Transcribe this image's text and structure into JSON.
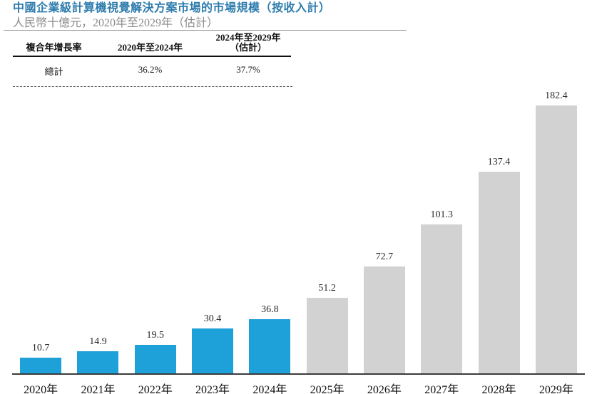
{
  "header": {
    "title": "中國企業級計算機視覺解決方案市場的市場規模（按收入計）",
    "subtitle": "人民幣十億元，2020年至2029年（估計）"
  },
  "cagr_table": {
    "col1_header": "複合年增長率",
    "col2_header": "2020年至2024年",
    "col3_header_line1": "2024年至2029年",
    "col3_header_line2": "（估計）",
    "row_label": "總計",
    "col2_value": "36.2%",
    "col3_value": "37.7%"
  },
  "chart_data": {
    "type": "bar",
    "title": "中國企業級計算機視覺解決方案市場的市場規模（按收入計）",
    "unit_label": "人民幣十億元",
    "xlabel": "",
    "ylabel": "",
    "categories": [
      "2020年",
      "2021年",
      "2022年",
      "2023年",
      "2024年",
      "2025年",
      "2026年",
      "2027年",
      "2028年",
      "2029年"
    ],
    "values": [
      10.7,
      14.9,
      19.5,
      30.4,
      36.8,
      51.2,
      72.7,
      101.3,
      137.4,
      182.4
    ],
    "value_labels_shown": true,
    "historical_count": 5,
    "colors": {
      "historical": "#1EA0D8",
      "estimated": "#D2D2D2"
    },
    "ylim": [
      0,
      182.4
    ],
    "grid": false,
    "legend": "none"
  },
  "colors": {
    "title_accent": "#2E7CAD",
    "subtitle_gray": "#8A8A8A",
    "axis_line": "#3B3B3B",
    "bar_historical": "#1EA0D8",
    "bar_estimated": "#D2D2D2"
  }
}
